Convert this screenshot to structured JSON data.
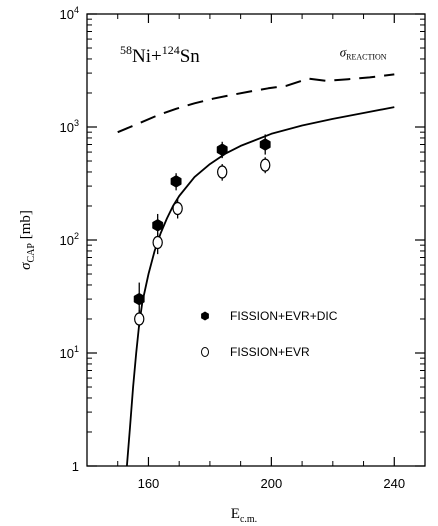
{
  "chart_data": {
    "type": "scatter",
    "title": "",
    "reaction_label": {
      "prefix": "58",
      "p1": "Ni+",
      "sup2": "124",
      "p2": "Sn"
    },
    "xlabel": {
      "main": "E",
      "sub": "c.m."
    },
    "ylabel": {
      "main": "σ",
      "sub": "CAP",
      "unit": "[mb]"
    },
    "x_range": [
      140,
      250
    ],
    "y_range": [
      1,
      10000
    ],
    "y_scale": "log",
    "x_ticks": [
      160,
      200,
      240
    ],
    "x_tick_labels": [
      "160",
      "200",
      "240"
    ],
    "x_minor_ticks": [
      150,
      170,
      180,
      190,
      210,
      220,
      230
    ],
    "y_ticks": [
      1,
      10,
      100,
      1000,
      10000
    ],
    "y_tick_labels": [
      {
        "base": "1",
        "exp": ""
      },
      {
        "base": "10",
        "exp": "1"
      },
      {
        "base": "10",
        "exp": "2"
      },
      {
        "base": "10",
        "exp": "3"
      },
      {
        "base": "10",
        "exp": "4"
      }
    ],
    "legend_placement": "center-right",
    "series": [
      {
        "name": "FISSION+EVR+DIC",
        "marker": "filled-hexagon",
        "points": [
          {
            "x": 157.0,
            "y": 30,
            "ylow": 21,
            "yhigh": 42
          },
          {
            "x": 163.0,
            "y": 135,
            "ylow": 105,
            "yhigh": 170
          },
          {
            "x": 169.0,
            "y": 330,
            "ylow": 275,
            "yhigh": 390
          },
          {
            "x": 184.0,
            "y": 630,
            "ylow": 530,
            "yhigh": 740
          },
          {
            "x": 198.0,
            "y": 700,
            "ylow": 570,
            "yhigh": 860
          }
        ]
      },
      {
        "name": "FISSION+EVR",
        "marker": "open-circle",
        "points": [
          {
            "x": 157.0,
            "y": 20,
            "ylow": 17,
            "yhigh": 24
          },
          {
            "x": 163.0,
            "y": 95,
            "ylow": 75,
            "yhigh": 115
          },
          {
            "x": 169.5,
            "y": 190,
            "ylow": 155,
            "yhigh": 230
          },
          {
            "x": 184.0,
            "y": 400,
            "ylow": 335,
            "yhigh": 470
          },
          {
            "x": 198.0,
            "y": 460,
            "ylow": 390,
            "yhigh": 540
          }
        ]
      }
    ],
    "curves": [
      {
        "name": "σ_REACTION",
        "label": {
          "main": "σ",
          "sub": "REACTION"
        },
        "style": "dashed",
        "x": [
          150,
          157,
          163,
          169,
          175,
          181,
          187,
          193,
          199,
          205,
          212,
          218,
          225,
          232,
          240
        ],
        "y": [
          900,
          1080,
          1270,
          1450,
          1620,
          1780,
          1920,
          2060,
          2200,
          2320,
          2680,
          2560,
          2650,
          2750,
          2920
        ]
      },
      {
        "name": "calculation",
        "style": "solid",
        "x": [
          153,
          154,
          155,
          156,
          157,
          158,
          160,
          162,
          164,
          166,
          168,
          170,
          175,
          180,
          185,
          190,
          200,
          210,
          220,
          230,
          240
        ],
        "y": [
          1,
          2.2,
          5,
          10,
          18,
          28,
          50,
          80,
          115,
          155,
          200,
          245,
          360,
          470,
          580,
          680,
          870,
          1030,
          1180,
          1330,
          1500
        ]
      }
    ]
  }
}
